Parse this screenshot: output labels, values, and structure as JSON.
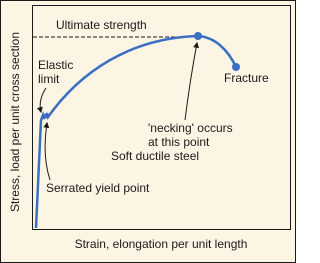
{
  "labels": {
    "ultimate_strength": "Ultimate strength",
    "elastic_limit": [
      "Elastic",
      "limit"
    ],
    "necking": [
      "'necking' occurs",
      "at this point"
    ],
    "fracture": "Fracture",
    "material": "Soft ductile steel",
    "serrated": "Serrated yield point",
    "y_axis": "Stress, load per unit cross section",
    "x_axis": "Strain, elongation per unit length"
  }
}
